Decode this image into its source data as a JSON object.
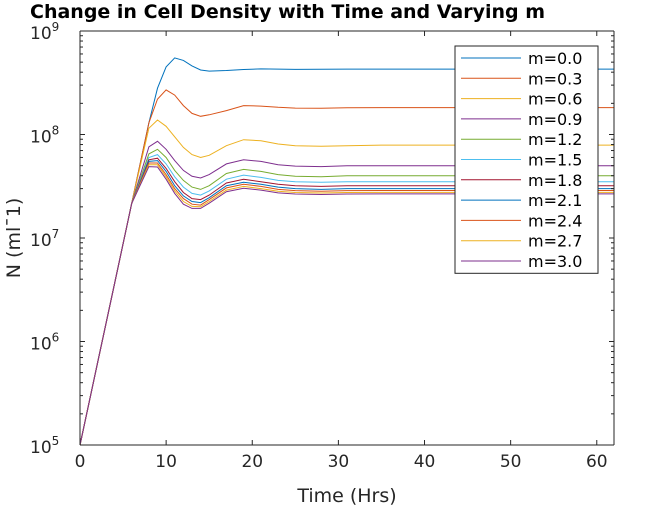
{
  "chart_data": {
    "type": "line",
    "title": "Change in Cell Density with Time and Varying m",
    "xlabel": "Time (Hrs)",
    "ylabel": "N (mlˉ1)",
    "xlim": [
      0,
      62
    ],
    "ylim": [
      100000,
      1000000000
    ],
    "yscale": "log",
    "xticks": [
      0,
      10,
      20,
      30,
      40,
      50,
      60
    ],
    "yticks": [
      {
        "base": "10",
        "exp": "5",
        "value": 100000
      },
      {
        "base": "10",
        "exp": "6",
        "value": 1000000
      },
      {
        "base": "10",
        "exp": "7",
        "value": 10000000
      },
      {
        "base": "10",
        "exp": "8",
        "value": 100000000
      },
      {
        "base": "10",
        "exp": "9",
        "value": 1000000000
      }
    ],
    "grid": false,
    "legend_position": "top-right",
    "x": [
      0,
      2,
      4,
      6,
      8,
      9,
      10,
      11,
      12,
      13,
      14,
      15,
      17,
      19,
      21,
      23,
      25,
      28,
      31,
      35,
      40,
      45,
      50,
      55,
      62
    ],
    "series": [
      {
        "name": "m=0.0",
        "color": "#0072BD",
        "values": [
          100000,
          600000,
          3600000,
          21600000,
          129600000,
          280000000,
          450000000,
          550000000,
          520000000,
          460000000,
          420000000,
          410000000,
          415000000,
          425000000,
          430000000,
          428000000,
          426000000,
          427000000,
          428000000,
          428000000,
          428000000,
          428000000,
          428000000,
          428000000,
          428000000
        ]
      },
      {
        "name": "m=0.3",
        "color": "#D95319",
        "values": [
          100000,
          600000,
          3600000,
          21600000,
          129600000,
          220000000,
          270000000,
          240000000,
          190000000,
          160000000,
          150000000,
          155000000,
          170000000,
          190000000,
          188000000,
          183000000,
          180000000,
          179000000,
          181000000,
          182000000,
          182000000,
          182000000,
          182000000,
          182000000,
          182000000
        ]
      },
      {
        "name": "m=0.6",
        "color": "#EDB120",
        "values": [
          100000,
          600000,
          3600000,
          21600000,
          115000000,
          138000000,
          120000000,
          95000000,
          75000000,
          64000000,
          60000000,
          63000000,
          78000000,
          89000000,
          87000000,
          81000000,
          78000000,
          77000000,
          78000000,
          79000000,
          79000000,
          79000000,
          79000000,
          79000000,
          79000000
        ]
      },
      {
        "name": "m=0.9",
        "color": "#7E2F8E",
        "values": [
          100000,
          600000,
          3600000,
          21600000,
          76000000,
          86000000,
          72000000,
          56000000,
          45000000,
          39500000,
          38000000,
          41000000,
          52000000,
          57000000,
          55000000,
          51000000,
          49500000,
          49000000,
          50000000,
          50000000,
          50000000,
          50000000,
          50000000,
          50000000,
          50000000
        ]
      },
      {
        "name": "m=1.2",
        "color": "#77AC30",
        "values": [
          100000,
          600000,
          3600000,
          21600000,
          65000000,
          72000000,
          60000000,
          45000000,
          36000000,
          31000000,
          29500000,
          32000000,
          42000000,
          46000000,
          44000000,
          41000000,
          39500000,
          39000000,
          40000000,
          40000000,
          40000000,
          40000000,
          40000000,
          40000000,
          40000000
        ]
      },
      {
        "name": "m=1.5",
        "color": "#4DBEEE",
        "values": [
          100000,
          600000,
          3600000,
          21600000,
          60000000,
          64000000,
          52000000,
          39000000,
          31000000,
          27000000,
          26000000,
          28500000,
          37000000,
          40500000,
          38500000,
          36000000,
          35000000,
          34500000,
          35000000,
          35000000,
          35000000,
          35000000,
          35000000,
          35000000,
          35000000
        ]
      },
      {
        "name": "m=1.8",
        "color": "#A2142F",
        "values": [
          100000,
          600000,
          3600000,
          21600000,
          57000000,
          59000000,
          47000000,
          35000000,
          27500000,
          24000000,
          23500000,
          26000000,
          34000000,
          37000000,
          35000000,
          33000000,
          32000000,
          31500000,
          32000000,
          32000000,
          32000000,
          32000000,
          32000000,
          32000000,
          32000000
        ]
      },
      {
        "name": "m=2.1",
        "color": "#0072BD",
        "values": [
          100000,
          600000,
          3600000,
          21600000,
          55000000,
          56000000,
          44000000,
          32000000,
          25500000,
          22500000,
          22000000,
          24500000,
          32000000,
          34500000,
          33000000,
          31000000,
          30000000,
          29500000,
          30000000,
          30000000,
          30000000,
          30000000,
          30000000,
          30000000,
          30000000
        ]
      },
      {
        "name": "m=2.4",
        "color": "#D95319",
        "values": [
          100000,
          600000,
          3600000,
          21600000,
          53000000,
          53000000,
          41000000,
          30000000,
          24000000,
          21200000,
          20800000,
          23500000,
          30500000,
          33000000,
          31500000,
          29500000,
          28700000,
          28300000,
          28700000,
          28800000,
          28800000,
          28800000,
          28800000,
          28800000,
          28800000
        ]
      },
      {
        "name": "m=2.7",
        "color": "#EDB120",
        "values": [
          100000,
          600000,
          3600000,
          21600000,
          51000000,
          51000000,
          39000000,
          28500000,
          22500000,
          20200000,
          20000000,
          22500000,
          29000000,
          31500000,
          30000000,
          28300000,
          27500000,
          27200000,
          27500000,
          27600000,
          27600000,
          27600000,
          27600000,
          27600000,
          27600000
        ]
      },
      {
        "name": "m=3.0",
        "color": "#7E2F8E",
        "values": [
          100000,
          600000,
          3600000,
          21600000,
          49000000,
          48500000,
          37000000,
          27000000,
          21200000,
          19300000,
          19300000,
          21700000,
          28000000,
          30300000,
          29000000,
          27300000,
          26600000,
          26300000,
          26600000,
          26700000,
          26700000,
          26700000,
          26700000,
          26700000,
          26700000
        ]
      }
    ]
  }
}
